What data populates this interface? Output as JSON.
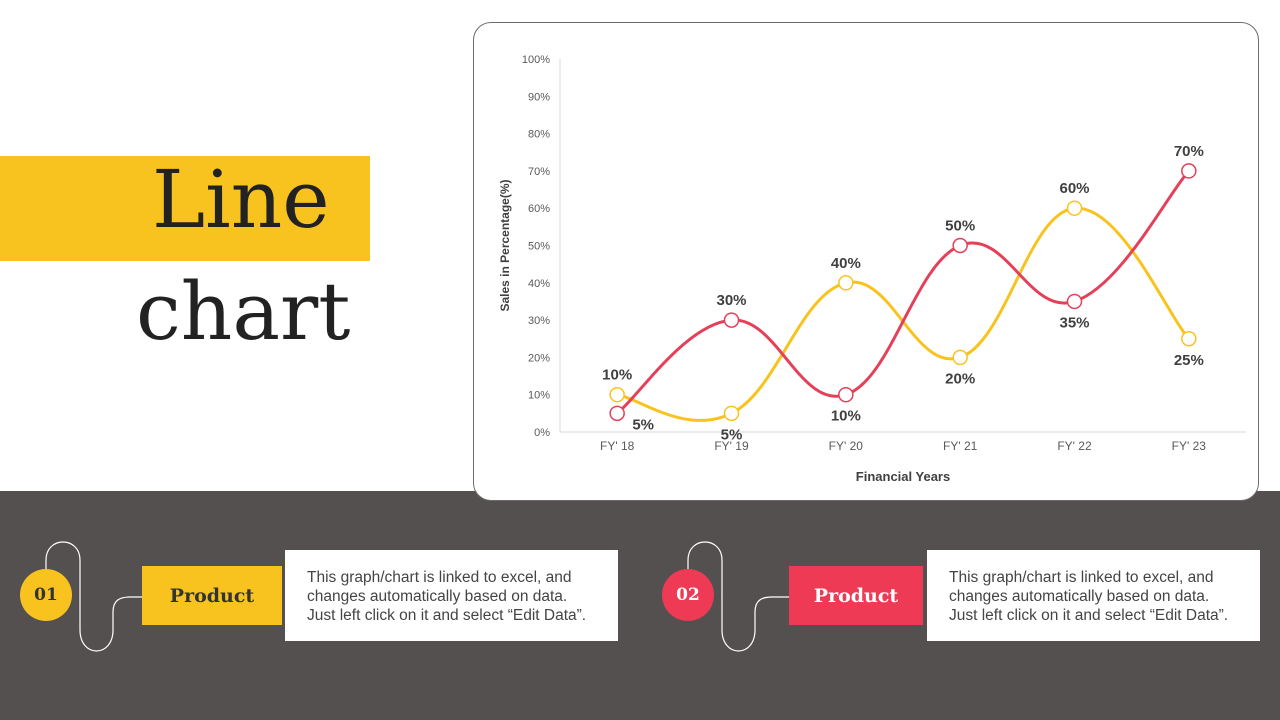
{
  "title": {
    "line1": "Line",
    "line2": "chart"
  },
  "chart_data": {
    "type": "line",
    "categories": [
      "FY' 18",
      "FY' 19",
      "FY' 20",
      "FY' 21",
      "FY' 22",
      "FY' 23"
    ],
    "series": [
      {
        "color": "#F9C31F",
        "values": [
          10,
          5,
          40,
          20,
          60,
          25
        ],
        "labels": [
          "10%",
          "5%",
          "40%",
          "20%",
          "60%",
          "25%"
        ]
      },
      {
        "color": "#E5405A",
        "values": [
          5,
          30,
          10,
          50,
          35,
          70
        ],
        "labels": [
          "5%",
          "30%",
          "10%",
          "50%",
          "35%",
          "70%"
        ]
      }
    ],
    "xlabel": "Financial Years",
    "ylabel": "Sales in Percentage(%)",
    "ylim": [
      0,
      100
    ],
    "yticks": [
      "0%",
      "10%",
      "20%",
      "30%",
      "40%",
      "50%",
      "60%",
      "70%",
      "80%",
      "90%",
      "100%"
    ],
    "legend": "none",
    "grid": false
  },
  "cards": [
    {
      "number": "01",
      "label": "Product",
      "color": "#F9C31F",
      "text": "This graph/chart is linked to excel, and changes automatically based on data. Just left click on it and select “Edit Data”."
    },
    {
      "number": "02",
      "label": "Product",
      "color": "#EE3A55",
      "text": "This graph/chart is linked to excel, and changes automatically based on data. Just left click on it and select “Edit Data”."
    }
  ]
}
